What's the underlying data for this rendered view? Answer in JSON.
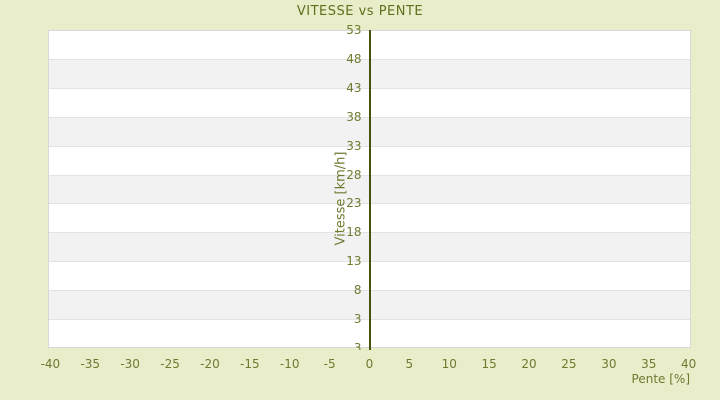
{
  "colors": {
    "page_background": "#e9edca",
    "title_text": "#5e701d",
    "tick_text": "#6f7a31",
    "axis_title_text": "#6f7a31",
    "zero_line": "#47520e",
    "band_even": "#ffffff",
    "band_odd": "#f2f2f2",
    "gridline": "#e3e3e3",
    "plot_border": "#d8d8d8"
  },
  "chart_data": {
    "type": "scatter",
    "title": "VITESSE vs PENTE",
    "xlabel": "Pente [%]",
    "ylabel": "Vitesse [km/h]",
    "x_ticks": [
      -40,
      -35,
      -30,
      -25,
      -20,
      -15,
      -10,
      -5,
      0,
      5,
      10,
      15,
      20,
      25,
      30,
      35,
      40
    ],
    "y_ticks": [
      53,
      48,
      43,
      38,
      33,
      28,
      23,
      18,
      13,
      8,
      3
    ],
    "y_bottom_edge_label": "3",
    "tick_step": 5,
    "xlim": [
      -40.3,
      40.3
    ],
    "ylim": [
      -2,
      53
    ],
    "grid": {
      "horizontal_bands": true,
      "vertical_gridlines": false,
      "zero_axis_line_x": 0
    },
    "legend": null,
    "series": [],
    "note": "no data points plotted"
  }
}
